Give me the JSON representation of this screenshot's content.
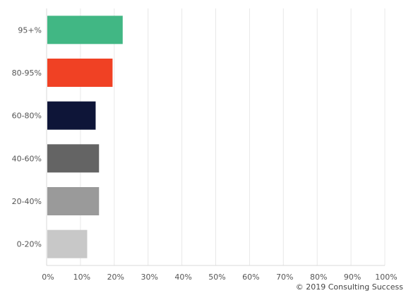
{
  "chart_data": {
    "type": "bar",
    "orientation": "horizontal",
    "categories": [
      "95+%",
      "80-95%",
      "60-80%",
      "40-60%",
      "20-40%",
      "0-20%"
    ],
    "values": [
      22.5,
      19.5,
      14.5,
      15.5,
      15.5,
      12
    ],
    "colors": [
      "#41b784",
      "#f04124",
      "#0e1538",
      "#646464",
      "#9a9a9a",
      "#c8c8c8"
    ],
    "xticks": [
      "0%",
      "10%",
      "20%",
      "30%",
      "40%",
      "50%",
      "60%",
      "70%",
      "80%",
      "90%",
      "100%"
    ],
    "xlim": [
      0,
      100
    ],
    "grid": true,
    "legend": "none"
  },
  "footer": {
    "copyright": "© 2019 Consulting Success"
  }
}
